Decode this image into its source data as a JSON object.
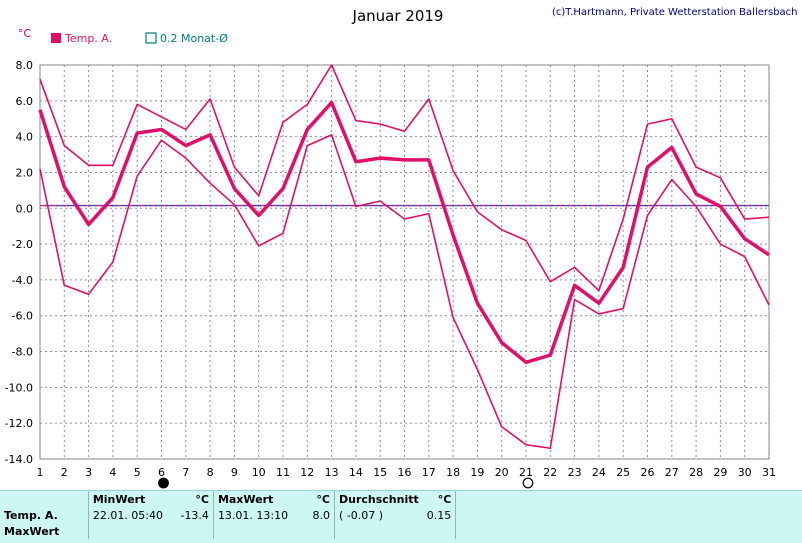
{
  "header": {
    "title": "Januar 2019",
    "credit": "(c)T.Hartmann, Private Wetterstation Ballersbach",
    "unit": "°C"
  },
  "legend": {
    "temp_label": "Temp. A.",
    "avg_label": "0.2 Monat-Ø",
    "temp_color": "#e0106a",
    "avg_color": "#008080"
  },
  "chart_data": {
    "type": "line",
    "x": [
      1,
      2,
      3,
      4,
      5,
      6,
      7,
      8,
      9,
      10,
      11,
      12,
      13,
      14,
      15,
      16,
      17,
      18,
      19,
      20,
      21,
      22,
      23,
      24,
      25,
      26,
      27,
      28,
      29,
      30,
      31
    ],
    "ylim": [
      -14,
      8
    ],
    "xlim": [
      1,
      31
    ],
    "y_ticks": [
      8.0,
      6.0,
      4.0,
      2.0,
      0.0,
      -2.0,
      -4.0,
      -6.0,
      -8.0,
      -10.0,
      -12.0,
      -14.0
    ],
    "y_tick_labels": [
      "8.0",
      "6.0",
      "4.0",
      "2.0",
      "0.0",
      "-2.0",
      "-4.0",
      "-6.0",
      "-8.0",
      "-10.0",
      "-12.0",
      "-14.0"
    ],
    "x_tick_labels": [
      "1",
      "2",
      "3",
      "4",
      "5",
      "6",
      "7",
      "8",
      "9",
      "10",
      "11",
      "12",
      "13",
      "14",
      "15",
      "16",
      "17",
      "18",
      "19",
      "20",
      "21",
      "22",
      "23",
      "24",
      "25",
      "26",
      "27",
      "28",
      "29",
      "30",
      "31"
    ],
    "grid": true,
    "series": [
      {
        "role": "max",
        "values": [
          7.2,
          3.5,
          2.4,
          2.4,
          5.8,
          5.1,
          4.4,
          6.1,
          2.3,
          0.7,
          4.8,
          5.8,
          8.0,
          4.9,
          4.7,
          4.3,
          6.1,
          2.1,
          -0.2,
          -1.2,
          -1.8,
          -4.1,
          -3.3,
          -4.6,
          -0.6,
          4.7,
          5.0,
          2.3,
          1.7,
          -0.6,
          -0.5
        ]
      },
      {
        "role": "mean",
        "values": [
          5.5,
          1.2,
          -0.9,
          0.6,
          4.2,
          4.4,
          3.5,
          4.1,
          1.1,
          -0.4,
          1.1,
          4.4,
          5.9,
          2.6,
          2.8,
          2.7,
          2.7,
          -1.5,
          -5.3,
          -7.5,
          -8.6,
          -8.2,
          -4.3,
          -5.3,
          -3.3,
          2.3,
          3.4,
          0.8,
          0.1,
          -1.7,
          -2.6
        ]
      },
      {
        "role": "min",
        "values": [
          2.2,
          -4.3,
          -4.8,
          -3.0,
          1.8,
          3.8,
          2.8,
          1.4,
          0.2,
          -2.1,
          -1.4,
          3.5,
          4.1,
          0.1,
          0.4,
          -0.6,
          -0.3,
          -6.1,
          -9.0,
          -12.2,
          -13.2,
          -13.4,
          -5.1,
          -5.9,
          -5.6,
          -0.4,
          1.6,
          0.1,
          -2.0,
          -2.7,
          -5.4
        ]
      }
    ],
    "reference_line": {
      "value": 0.15,
      "label": "0.2 Monat-Ø"
    },
    "moon_phases": [
      {
        "day": 6,
        "phase": "new"
      },
      {
        "day": 21,
        "phase": "full"
      }
    ]
  },
  "stats": {
    "headers": {
      "min": "MinWert",
      "max": "MaxWert",
      "avg": "Durchschnitt",
      "unit": "°C"
    },
    "row_label": "Temp. A.",
    "row_label2": "MaxWert",
    "min_time": "22.01.  05:40",
    "min_value": "-13.4",
    "max_time": "13.01.  13:10",
    "max_value": "8.0",
    "avg_note": "( -0.07 )",
    "avg_value": "0.15"
  }
}
